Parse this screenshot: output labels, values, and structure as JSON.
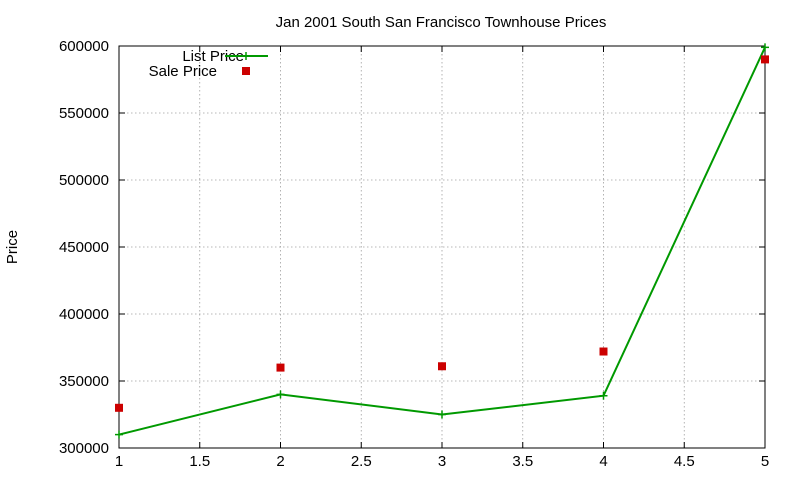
{
  "chart_data": {
    "type": "line",
    "title": "Jan 2001 South San Francisco Townhouse Prices",
    "xlabel": "",
    "ylabel": "Price",
    "x": [
      1,
      2,
      3,
      4,
      5
    ],
    "xlim": [
      1,
      5
    ],
    "ylim": [
      300000,
      600000
    ],
    "xticks": [
      1,
      1.5,
      2,
      2.5,
      3,
      3.5,
      4,
      4.5,
      5
    ],
    "xtick_labels": [
      "1",
      "1.5",
      "2",
      "2.5",
      "3",
      "3.5",
      "4",
      "4.5",
      "5"
    ],
    "yticks": [
      300000,
      350000,
      400000,
      450000,
      500000,
      550000,
      600000
    ],
    "ytick_labels": [
      "300000",
      "350000",
      "400000",
      "450000",
      "500000",
      "550000",
      "600000"
    ],
    "grid": true,
    "legend_position": "top-left",
    "series": [
      {
        "name": "List Price",
        "style": "linespoints",
        "marker": "plus",
        "color": "#009900",
        "values": [
          310000,
          340000,
          325000,
          339000,
          599000
        ]
      },
      {
        "name": "Sale Price",
        "style": "points",
        "marker": "square",
        "color": "#cc0000",
        "values": [
          330000,
          360000,
          361000,
          372000,
          590000
        ]
      }
    ]
  }
}
